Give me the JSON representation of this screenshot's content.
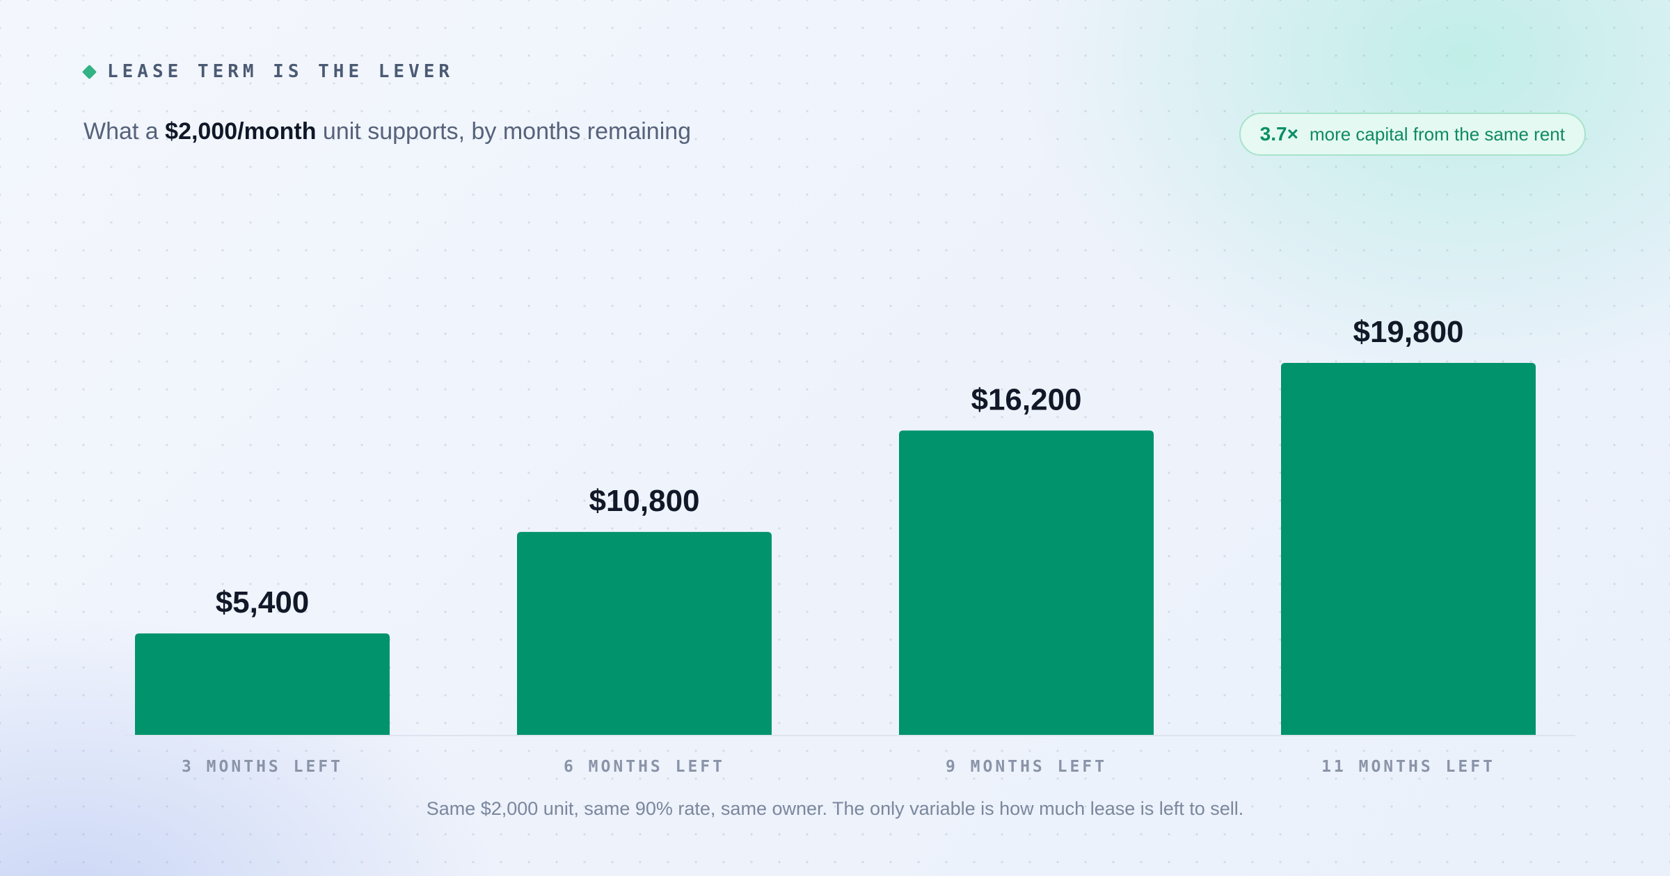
{
  "header": {
    "eyebrow": "LEASE TERM IS THE LEVER",
    "subtitle_pre": "What a ",
    "subtitle_bold": "$2,000/month",
    "subtitle_post": " unit supports, by months remaining"
  },
  "badge": {
    "value": "3.7×",
    "text": "more capital from the same rent"
  },
  "footnote": "Same $2,000 unit, same 90% rate, same owner. The only variable is how much lease is left to sell.",
  "colors": {
    "bar": "#00936c",
    "accent": "#33b384",
    "value_label": "#111827",
    "category_label": "#8a94a8"
  },
  "chart_data": {
    "type": "bar",
    "categories": [
      "3 MONTHS LEFT",
      "6 MONTHS LEFT",
      "9 MONTHS LEFT",
      "11 MONTHS LEFT"
    ],
    "values": [
      5400,
      10800,
      16200,
      19800
    ],
    "value_labels": [
      "$5,400",
      "$10,800",
      "$16,200",
      "$19,800"
    ],
    "ylim": [
      0,
      19800
    ],
    "grid": false,
    "legend": "none"
  }
}
